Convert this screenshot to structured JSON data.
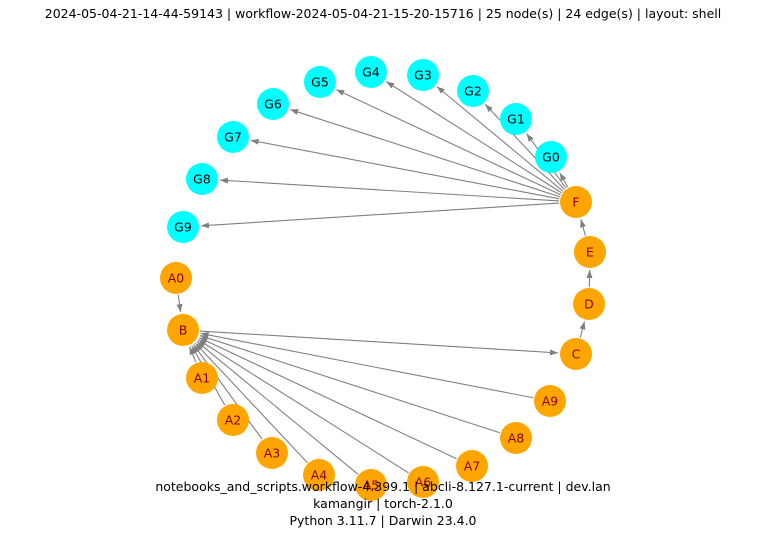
{
  "header": {
    "title": "2024-05-04-21-14-44-59143 | workflow-2024-05-04-21-15-20-15716 | 25 node(s) | 24 edge(s) | layout: shell"
  },
  "colors": {
    "source_node": "#FFA500",
    "target_node": "#00FFFF",
    "source_label": "#8B0000",
    "target_label": "#000000",
    "edge": "#808080"
  },
  "nodes": [
    {
      "id": "G0",
      "group": "G"
    },
    {
      "id": "G1",
      "group": "G"
    },
    {
      "id": "G2",
      "group": "G"
    },
    {
      "id": "G3",
      "group": "G"
    },
    {
      "id": "G4",
      "group": "G"
    },
    {
      "id": "G5",
      "group": "G"
    },
    {
      "id": "G6",
      "group": "G"
    },
    {
      "id": "G7",
      "group": "G"
    },
    {
      "id": "G8",
      "group": "G"
    },
    {
      "id": "G9",
      "group": "G"
    },
    {
      "id": "A0",
      "group": "A"
    },
    {
      "id": "B",
      "group": "A"
    },
    {
      "id": "A1",
      "group": "A"
    },
    {
      "id": "A2",
      "group": "A"
    },
    {
      "id": "A3",
      "group": "A"
    },
    {
      "id": "A4",
      "group": "A"
    },
    {
      "id": "A5",
      "group": "A"
    },
    {
      "id": "A6",
      "group": "A"
    },
    {
      "id": "A7",
      "group": "A"
    },
    {
      "id": "A8",
      "group": "A"
    },
    {
      "id": "A9",
      "group": "A"
    },
    {
      "id": "C",
      "group": "A"
    },
    {
      "id": "D",
      "group": "A"
    },
    {
      "id": "E",
      "group": "A"
    },
    {
      "id": "F",
      "group": "A"
    }
  ],
  "edges": [
    [
      "A0",
      "B"
    ],
    [
      "A1",
      "B"
    ],
    [
      "A2",
      "B"
    ],
    [
      "A3",
      "B"
    ],
    [
      "A4",
      "B"
    ],
    [
      "A5",
      "B"
    ],
    [
      "A6",
      "B"
    ],
    [
      "A7",
      "B"
    ],
    [
      "A8",
      "B"
    ],
    [
      "A9",
      "B"
    ],
    [
      "B",
      "C"
    ],
    [
      "C",
      "D"
    ],
    [
      "D",
      "E"
    ],
    [
      "E",
      "F"
    ],
    [
      "F",
      "G0"
    ],
    [
      "F",
      "G1"
    ],
    [
      "F",
      "G2"
    ],
    [
      "F",
      "G3"
    ],
    [
      "F",
      "G4"
    ],
    [
      "F",
      "G5"
    ],
    [
      "F",
      "G6"
    ],
    [
      "F",
      "G7"
    ],
    [
      "F",
      "G8"
    ],
    [
      "F",
      "G9"
    ]
  ],
  "footer": {
    "line1": "notebooks_and_scripts.workflow-4.399.1 | abcli-8.127.1-current | dev.lan",
    "line2": "kamangir | torch-2.1.0",
    "line3": "Python 3.11.7 | Darwin 23.4.0"
  }
}
